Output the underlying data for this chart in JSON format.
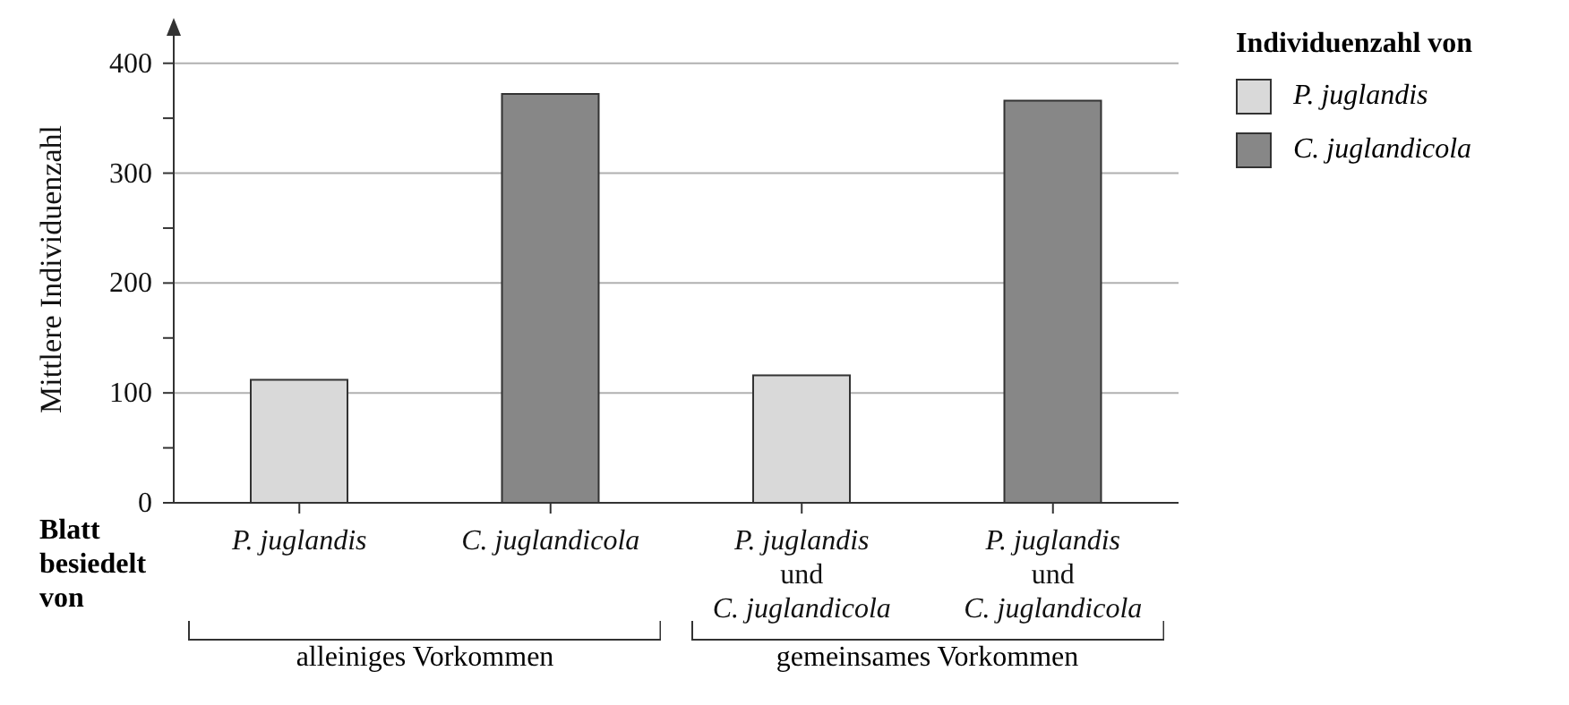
{
  "chart_data": {
    "type": "bar",
    "ylabel": "Mittlere Individuenzahl",
    "xlabel": "Blatt\nbesiedelt\nvon",
    "legend_title": "Individuenzahl von",
    "categories": [
      "P. juglandis",
      "C. juglandicola",
      "P. juglandis\nund\nC. juglandicola",
      "P. juglandis\nund\nC. juglandicola"
    ],
    "series": [
      {
        "name": "P. juglandis",
        "color": "#d9d9d9",
        "values": [
          112,
          null,
          116,
          null
        ]
      },
      {
        "name": "C. juglandicola",
        "color": "#878787",
        "values": [
          null,
          372,
          null,
          366
        ]
      }
    ],
    "ylim": [
      0,
      425
    ],
    "yticks": [
      0,
      {
        "value": 50,
        "label": null
      },
      100,
      {
        "value": 150,
        "label": null
      },
      200,
      {
        "value": 250,
        "label": null
      },
      300,
      {
        "value": 350,
        "label": null
      },
      400
    ],
    "grid": "y",
    "legend": "top right",
    "annotations": [
      "alleiniges Vorkommen",
      "gemeinsames Vorkommen"
    ]
  }
}
